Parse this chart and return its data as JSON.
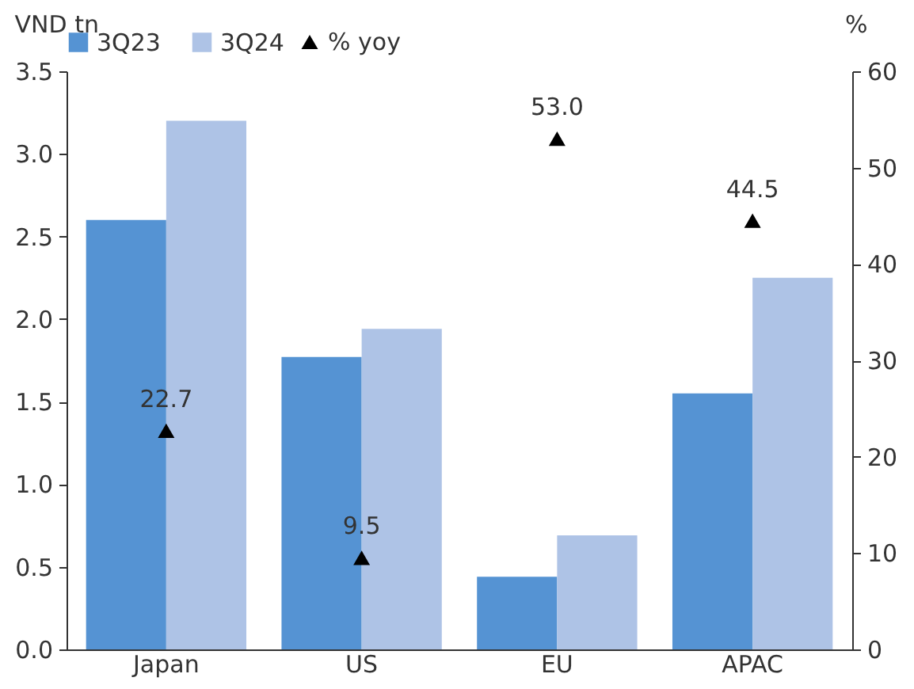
{
  "chart_data": {
    "type": "bar",
    "categories": [
      "Japan",
      "US",
      "EU",
      "APAC"
    ],
    "ylabel": "VND tn",
    "y2label": "%",
    "ylim": [
      0,
      3.5
    ],
    "yticks": [
      {
        "value": 0,
        "label": "0.0"
      },
      {
        "value": 0.5,
        "label": "0.5"
      },
      {
        "value": 1,
        "label": "1.0"
      },
      {
        "value": 1.5,
        "label": "1.5"
      },
      {
        "value": 2,
        "label": "2.0"
      },
      {
        "value": 2.5,
        "label": "2.5"
      },
      {
        "value": 3,
        "label": "3.0"
      },
      {
        "value": 3.5,
        "label": "3.5"
      }
    ],
    "y2lim": [
      0,
      60
    ],
    "y2ticks": [
      0,
      10,
      20,
      30,
      40,
      50,
      60
    ],
    "legend": "top",
    "grid": false,
    "series": [
      {
        "name": "3Q23",
        "color": "#5593d3",
        "values": [
          2.6,
          1.77,
          0.44,
          1.55
        ]
      },
      {
        "name": "3Q24",
        "color": "#aec3e6",
        "values": [
          3.2,
          1.94,
          0.69,
          2.25
        ]
      },
      {
        "name": "% yoy",
        "type": "scatter",
        "axis": "y2",
        "marker": "triangle",
        "color": "#000000",
        "values": [
          22.7,
          9.5,
          53.0,
          44.5
        ],
        "value_labels": [
          "22.7",
          "9.5",
          "53.0",
          "44.5"
        ]
      }
    ]
  }
}
